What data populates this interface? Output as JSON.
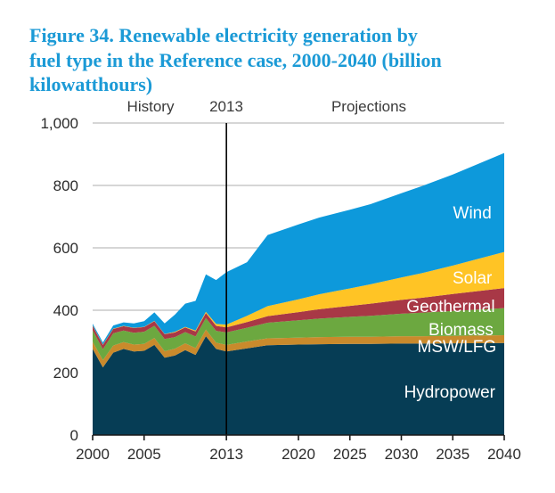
{
  "title": {
    "lines": [
      "Figure 34. Renewable electricity generation by",
      "fuel type in the Reference case, 2000-2040 (billion",
      "kilowatthours)"
    ],
    "color": "#1B9AD6"
  },
  "chart_data": {
    "type": "area",
    "stacked": true,
    "title": "Figure 34. Renewable electricity generation by fuel type in the Reference case, 2000-2040 (billion kilowatthours)",
    "unit": "billion kilowatthours",
    "xlim": [
      2000,
      2040
    ],
    "ylim": [
      0,
      1000
    ],
    "grid": "horizontal",
    "legend": "in-plot white labels",
    "x": [
      2000,
      2001,
      2002,
      2003,
      2004,
      2005,
      2006,
      2007,
      2008,
      2009,
      2010,
      2011,
      2012,
      2013,
      2015,
      2017,
      2020,
      2022,
      2025,
      2027,
      2030,
      2032,
      2035,
      2040
    ],
    "series": [
      {
        "name": "Hydropower",
        "color": "#063D55",
        "values": [
          276,
          217,
          264,
          276,
          268,
          270,
          289,
          248,
          255,
          272,
          257,
          317,
          276,
          268,
          278,
          288,
          290,
          291,
          292,
          292,
          293,
          293,
          294,
          295
        ],
        "label": {
          "text": "Hydropower",
          "year": 2034.7,
          "value": 140
        }
      },
      {
        "name": "MSW/LFG",
        "color": "#C98A2C",
        "values": [
          23,
          23,
          23,
          22,
          22,
          22,
          22,
          21,
          22,
          22,
          22,
          21,
          20,
          21,
          22,
          22,
          22,
          23,
          23,
          23,
          24,
          24,
          24,
          25
        ],
        "label": {
          "text": "MSW/LFG",
          "year": 2035.4,
          "value": 286
        }
      },
      {
        "name": "Biomass",
        "color": "#6CA840",
        "values": [
          37,
          35,
          39,
          37,
          38,
          39,
          39,
          39,
          37,
          36,
          37,
          37,
          38,
          40,
          44,
          50,
          56,
          59,
          64,
          67,
          72,
          75,
          80,
          87
        ],
        "label": {
          "text": "Biomass",
          "year": 2035.8,
          "value": 340
        }
      },
      {
        "name": "Geothermal",
        "color": "#A83846",
        "values": [
          14,
          14,
          14,
          14,
          15,
          15,
          15,
          15,
          15,
          15,
          16,
          16,
          16,
          16,
          18,
          21,
          26,
          30,
          35,
          39,
          44,
          48,
          54,
          64
        ],
        "label": {
          "text": "Geothermal",
          "year": 2034.8,
          "value": 414
        }
      },
      {
        "name": "Solar",
        "color": "#FFC425",
        "values": [
          1,
          1,
          1,
          1,
          1,
          1,
          1,
          1,
          2,
          2,
          3,
          4,
          6,
          9,
          20,
          32,
          41,
          48,
          56,
          62,
          72,
          79,
          91,
          116
        ],
        "label": {
          "text": "Solar",
          "year": 2036.9,
          "value": 506
        }
      },
      {
        "name": "Wind",
        "color": "#0D99DB",
        "values": [
          6,
          7,
          10,
          11,
          14,
          18,
          27,
          34,
          55,
          74,
          95,
          120,
          141,
          168,
          172,
          228,
          240,
          246,
          252,
          257,
          270,
          279,
          292,
          317
        ],
        "label": {
          "text": "Wind",
          "year": 2036.9,
          "value": 714
        }
      }
    ],
    "x_ticks": [
      {
        "label": "2000",
        "year": 2000
      },
      {
        "label": "2005",
        "year": 2005
      },
      {
        "label": "2013",
        "year": 2013
      },
      {
        "label": "2020",
        "year": 2020
      },
      {
        "label": "2025",
        "year": 2025
      },
      {
        "label": "2030",
        "year": 2030
      },
      {
        "label": "2035",
        "year": 2035
      },
      {
        "label": "2040",
        "year": 2040
      }
    ],
    "y_ticks": [
      {
        "label": "0",
        "value": 0
      },
      {
        "label": "200",
        "value": 200
      },
      {
        "label": "400",
        "value": 400
      },
      {
        "label": "600",
        "value": 600
      },
      {
        "label": "800",
        "value": 800
      },
      {
        "label": "1,000",
        "value": 1000
      }
    ],
    "annotations": {
      "history": {
        "text": "History"
      },
      "divider": {
        "text": "2013",
        "year": 2013
      },
      "projections": {
        "text": "Projections"
      }
    },
    "colors": {
      "grid": "#BDBDBD",
      "axis_line": "#1a1a1a",
      "divider_line": "#000000",
      "axis_text": "#2b2b2b",
      "series_label_text": "#FFFFFF"
    }
  }
}
